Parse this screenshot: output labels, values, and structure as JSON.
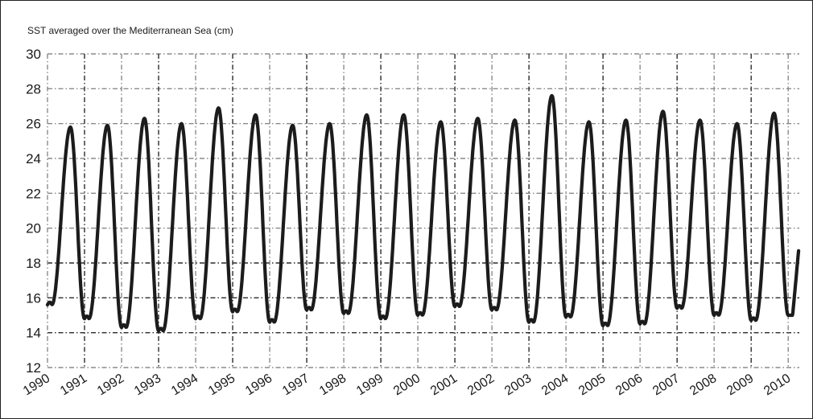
{
  "chart_data": {
    "type": "line",
    "title": "SST averaged over the Mediterranean Sea (cm)",
    "xlabel": "",
    "ylabel": "",
    "xlim": [
      1990,
      2010.3
    ],
    "ylim": [
      12,
      30
    ],
    "x_ticks": [
      "1990",
      "1991",
      "1992",
      "1993",
      "1994",
      "1995",
      "1996",
      "1997",
      "1998",
      "1999",
      "2000",
      "2001",
      "2002",
      "2003",
      "2004",
      "2005",
      "2006",
      "2007",
      "2008",
      "2009",
      "2010"
    ],
    "y_ticks": [
      "12",
      "14",
      "16",
      "18",
      "20",
      "22",
      "24",
      "26",
      "28",
      "30"
    ],
    "grid": true,
    "colors": {
      "line": "#1c1c1c",
      "grid_light": "#8a8a8a",
      "grid_dark": "#2a2a2a"
    },
    "series": [
      {
        "years": [
          1990,
          1991,
          1992,
          1993,
          1994,
          1995,
          1996,
          1997,
          1998,
          1999,
          2000,
          2001,
          2002,
          2003,
          2004,
          2005,
          2006,
          2007,
          2008,
          2009,
          2010
        ],
        "winter_min": [
          15.6,
          14.8,
          14.3,
          14.1,
          14.8,
          15.2,
          14.6,
          15.3,
          15.1,
          14.8,
          15.0,
          15.5,
          15.3,
          14.6,
          14.9,
          14.4,
          14.5,
          15.4,
          15.0,
          14.7,
          15.0
        ],
        "summer_max": [
          25.8,
          25.9,
          26.3,
          26.0,
          26.9,
          26.5,
          25.9,
          26.0,
          26.5,
          26.5,
          26.1,
          26.3,
          26.2,
          27.6,
          26.1,
          26.2,
          26.7,
          26.2,
          26.0,
          26.6
        ],
        "end_value": 18.7
      }
    ]
  }
}
